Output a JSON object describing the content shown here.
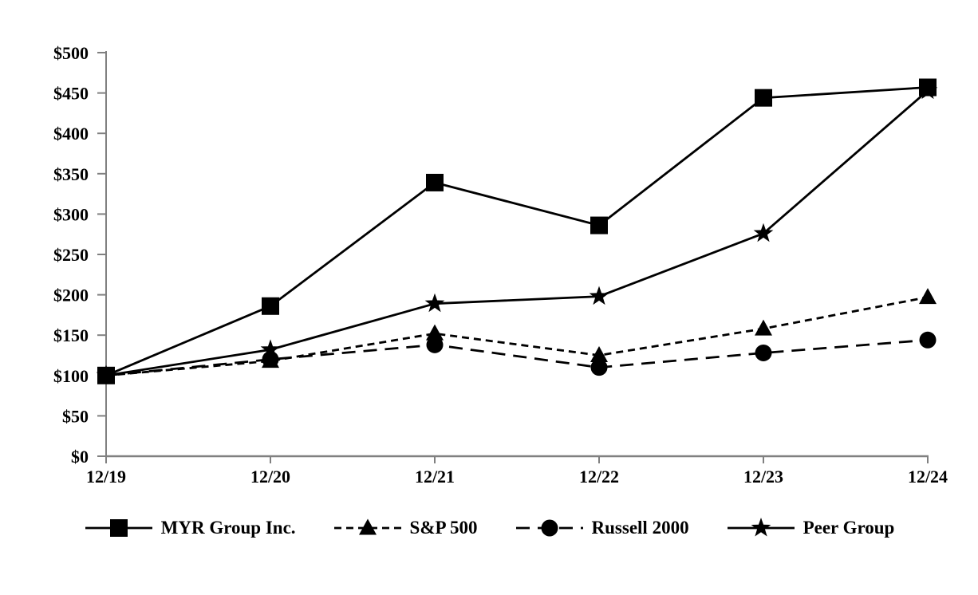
{
  "colors": {
    "background": "#ffffff",
    "axis": "#808080",
    "series": "#000000",
    "text": "#000000"
  },
  "chart_data": {
    "type": "line",
    "title": "",
    "xlabel": "",
    "ylabel": "",
    "x_categories": [
      "12/19",
      "12/20",
      "12/21",
      "12/22",
      "12/23",
      "12/24"
    ],
    "y_tick_labels": [
      "$0",
      "$50",
      "$100",
      "$150",
      "$200",
      "$250",
      "$300",
      "$350",
      "$400",
      "$450",
      "$500"
    ],
    "ylim": [
      0,
      500
    ],
    "y_tick_step": 50,
    "grid": false,
    "legend_position": "bottom",
    "series": [
      {
        "name": "MYR Group Inc.",
        "marker": "square",
        "line_style": "solid",
        "values": [
          100,
          186,
          339,
          286,
          444,
          457
        ]
      },
      {
        "name": "S&P 500",
        "marker": "triangle",
        "line_style": "short-dash",
        "values": [
          100,
          118,
          152,
          125,
          158,
          197
        ]
      },
      {
        "name": "Russell 2000",
        "marker": "circle",
        "line_style": "long-dash",
        "values": [
          100,
          120,
          138,
          110,
          128,
          144
        ]
      },
      {
        "name": "Peer Group",
        "marker": "star",
        "line_style": "solid",
        "values": [
          100,
          132,
          189,
          198,
          276,
          453
        ]
      }
    ]
  }
}
